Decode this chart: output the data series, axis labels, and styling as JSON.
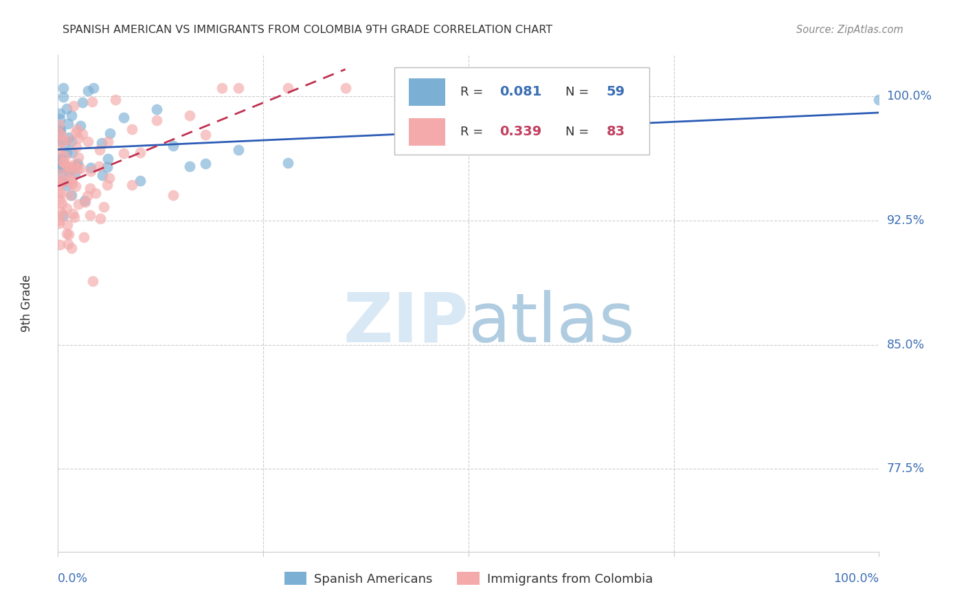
{
  "title": "SPANISH AMERICAN VS IMMIGRANTS FROM COLOMBIA 9TH GRADE CORRELATION CHART",
  "source": "Source: ZipAtlas.com",
  "ylabel": "9th Grade",
  "ytick_labels": [
    "100.0%",
    "92.5%",
    "85.0%",
    "77.5%"
  ],
  "ytick_values": [
    1.0,
    0.925,
    0.85,
    0.775
  ],
  "xlim": [
    0.0,
    1.0
  ],
  "ylim": [
    0.725,
    1.025
  ],
  "color_blue": "#7BAFD4",
  "color_pink": "#F4AAAA",
  "color_blue_text": "#3B6EB5",
  "color_pink_text": "#C04060",
  "color_trendline_blue": "#2B5BB5",
  "color_trendline_pink": "#C03050",
  "grid_color": "#CCCCCC",
  "axis_color": "#CCCCCC",
  "title_color": "#333333",
  "source_color": "#888888",
  "label_color": "#333333",
  "watermark_color_zip": "#D8E8F5",
  "watermark_color_atlas": "#B0CCE0"
}
